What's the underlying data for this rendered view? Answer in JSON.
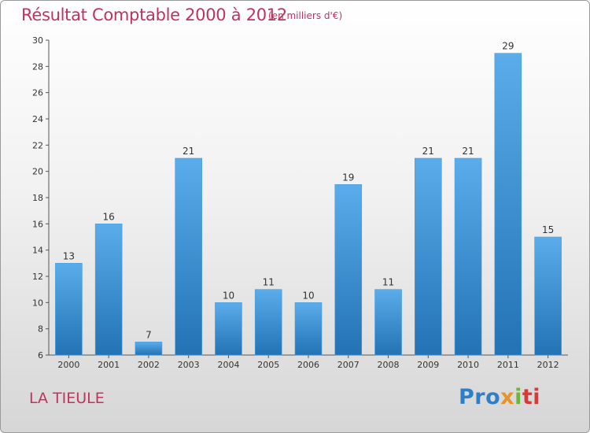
{
  "header": {
    "title": "Résultat Comptable 2000 à 2012",
    "subtitle": "(en milliers d'€)"
  },
  "footer": {
    "commune": "LA TIEULE",
    "logo": {
      "p1": "Pro",
      "p2": "x",
      "p3": "i",
      "p4": "ti"
    }
  },
  "colors": {
    "title": "#c1325e",
    "bar_top": "#5aacea",
    "bar_bottom": "#2373b4",
    "axis": "#555555"
  },
  "chart_data": {
    "type": "bar",
    "title": "Résultat Comptable 2000 à 2012",
    "subtitle": "(en milliers d'€)",
    "categories": [
      "2000",
      "2001",
      "2002",
      "2003",
      "2004",
      "2005",
      "2006",
      "2007",
      "2008",
      "2009",
      "2010",
      "2011",
      "2012"
    ],
    "values": [
      13,
      16,
      7,
      21,
      10,
      11,
      10,
      19,
      11,
      21,
      21,
      29,
      15
    ],
    "ylim": [
      6,
      30
    ],
    "yticks": [
      6,
      8,
      10,
      12,
      14,
      16,
      18,
      20,
      22,
      24,
      26,
      28,
      30
    ],
    "grid": false,
    "legend": "none"
  }
}
